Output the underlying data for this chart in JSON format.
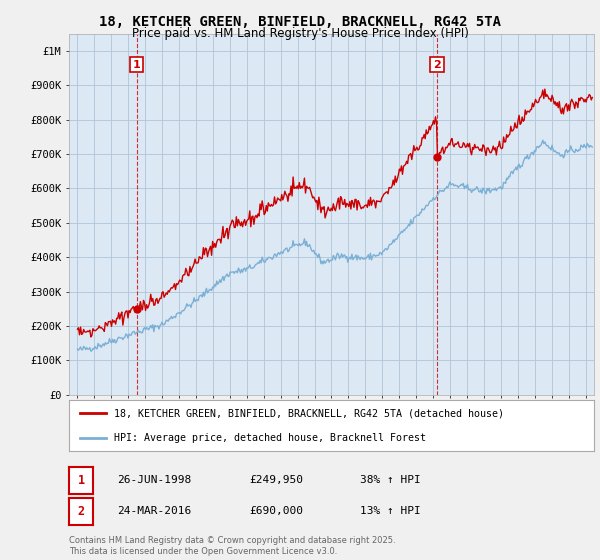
{
  "title": "18, KETCHER GREEN, BINFIELD, BRACKNELL, RG42 5TA",
  "subtitle": "Price paid vs. HM Land Registry's House Price Index (HPI)",
  "legend_line1": "18, KETCHER GREEN, BINFIELD, BRACKNELL, RG42 5TA (detached house)",
  "legend_line2": "HPI: Average price, detached house, Bracknell Forest",
  "annotation1": {
    "label": "1",
    "date": "26-JUN-1998",
    "price": "£249,950",
    "pct": "38% ↑ HPI"
  },
  "annotation2": {
    "label": "2",
    "date": "24-MAR-2016",
    "price": "£690,000",
    "pct": "13% ↑ HPI"
  },
  "footnote": "Contains HM Land Registry data © Crown copyright and database right 2025.\nThis data is licensed under the Open Government Licence v3.0.",
  "hpi_color": "#7bafd4",
  "price_color": "#cc0000",
  "marker1_x": 1998.49,
  "marker1_y": 249950,
  "marker2_x": 2016.23,
  "marker2_y": 690000,
  "ylim_max": 1050000,
  "yticks": [
    0,
    100000,
    200000,
    300000,
    400000,
    500000,
    600000,
    700000,
    800000,
    900000,
    1000000
  ],
  "ytick_labels": [
    "£0",
    "£100K",
    "£200K",
    "£300K",
    "£400K",
    "£500K",
    "£600K",
    "£700K",
    "£800K",
    "£900K",
    "£1M"
  ],
  "xlim_min": 1994.5,
  "xlim_max": 2025.5,
  "background_color": "#f0f0f0",
  "plot_bg_color": "#dce9f5",
  "grid_color": "#b0c4d8",
  "dashed_line1_x": 1998.49,
  "dashed_line2_x": 2016.23,
  "fig_width": 6.0,
  "fig_height": 5.6,
  "dpi": 100
}
